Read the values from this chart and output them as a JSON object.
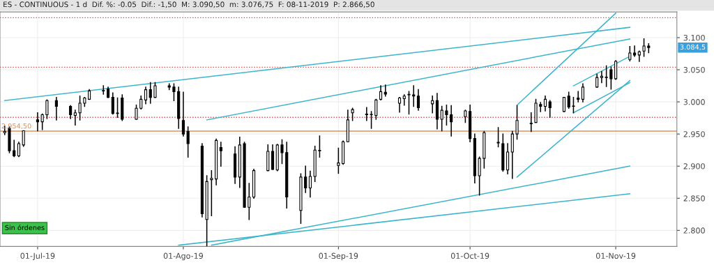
{
  "chart_data": {
    "type": "candlestick",
    "title": "ES - CONTINUOUS - 1 d  Dif. %: -0.05  Dif.: -1,50  M: 3.090,50  m: 3.076,75  F: 08-11-2019  P: 2.866,50",
    "x": [
      "2019-06-24",
      "2019-06-25",
      "2019-06-26",
      "2019-06-27",
      "2019-06-28",
      "2019-07-01",
      "2019-07-02",
      "2019-07-03",
      "2019-07-05",
      "2019-07-08",
      "2019-07-09",
      "2019-07-10",
      "2019-07-11",
      "2019-07-12",
      "2019-07-15",
      "2019-07-16",
      "2019-07-17",
      "2019-07-18",
      "2019-07-19",
      "2019-07-22",
      "2019-07-23",
      "2019-07-24",
      "2019-07-25",
      "2019-07-26",
      "2019-07-29",
      "2019-07-30",
      "2019-07-31",
      "2019-08-01",
      "2019-08-02",
      "2019-08-05",
      "2019-08-06",
      "2019-08-07",
      "2019-08-08",
      "2019-08-09",
      "2019-08-12",
      "2019-08-13",
      "2019-08-14",
      "2019-08-15",
      "2019-08-16",
      "2019-08-19",
      "2019-08-20",
      "2019-08-21",
      "2019-08-22",
      "2019-08-23",
      "2019-08-26",
      "2019-08-27",
      "2019-08-28",
      "2019-08-29",
      "2019-08-30",
      "2019-09-03",
      "2019-09-04",
      "2019-09-05",
      "2019-09-06",
      "2019-09-09",
      "2019-09-10",
      "2019-09-11",
      "2019-09-12",
      "2019-09-13",
      "2019-09-16",
      "2019-09-17",
      "2019-09-18",
      "2019-09-19",
      "2019-09-20",
      "2019-09-23",
      "2019-09-24",
      "2019-09-25",
      "2019-09-26",
      "2019-09-27",
      "2019-09-30",
      "2019-10-01",
      "2019-10-02",
      "2019-10-03",
      "2019-10-04",
      "2019-10-07",
      "2019-10-08",
      "2019-10-09",
      "2019-10-10",
      "2019-10-11",
      "2019-10-14",
      "2019-10-15",
      "2019-10-16",
      "2019-10-17",
      "2019-10-18",
      "2019-10-21",
      "2019-10-22",
      "2019-10-23",
      "2019-10-24",
      "2019-10-25",
      "2019-10-28",
      "2019-10-29",
      "2019-10-30",
      "2019-10-31",
      "2019-11-01",
      "2019-11-04",
      "2019-11-05",
      "2019-11-06",
      "2019-11-07",
      "2019-11-08"
    ],
    "ohlc": [
      [
        2952,
        2962,
        2949,
        2954
      ],
      [
        2959,
        2961,
        2921,
        2924
      ],
      [
        2924,
        2940,
        2915,
        2916
      ],
      [
        2916,
        2937,
        2915,
        2935
      ],
      [
        2933,
        2955,
        2931,
        2955
      ],
      [
        2972,
        2983,
        2955,
        2969
      ],
      [
        2969,
        2981,
        2957,
        2980
      ],
      [
        2980,
        3003,
        2974,
        3002
      ],
      [
        3002,
        3007,
        2972,
        2993
      ],
      [
        2993,
        2994,
        2974,
        2980
      ],
      [
        2979,
        2987,
        2964,
        2983
      ],
      [
        2983,
        3009,
        2972,
        2998
      ],
      [
        2998,
        3007,
        2993,
        3006
      ],
      [
        3004,
        3019,
        3004,
        3017
      ],
      [
        3017,
        3025,
        3012,
        3017
      ],
      [
        3020,
        3023,
        3007,
        3007
      ],
      [
        3007,
        3014,
        2981,
        2982
      ],
      [
        2982,
        3006,
        2976,
        2982
      ],
      [
        3006,
        3011,
        2971,
        2973
      ],
      [
        2973,
        2995,
        2973,
        2990
      ],
      [
        2990,
        3009,
        2989,
        3004
      ],
      [
        3003,
        3023,
        2997,
        3019
      ],
      [
        3019,
        3030,
        2998,
        3007
      ],
      [
        3007,
        3030,
        3007,
        3025
      ],
      [
        3025,
        3028,
        3019,
        3023
      ],
      [
        3023,
        3028,
        3002,
        3016
      ],
      [
        3016,
        3023,
        2959,
        2974
      ],
      [
        2971,
        3015,
        2947,
        2950
      ],
      [
        2954,
        2961,
        2914,
        2935
      ],
      [
        2931,
        2935,
        2821,
        2826
      ],
      [
        2817,
        2885,
        2776,
        2876
      ],
      [
        2879,
        2893,
        2823,
        2881
      ],
      [
        2880,
        2942,
        2871,
        2940
      ],
      [
        2929,
        2937,
        2900,
        2924
      ],
      [
        2919,
        2930,
        2873,
        2883
      ],
      [
        2883,
        2945,
        2867,
        2933
      ],
      [
        2935,
        2937,
        2836,
        2836
      ],
      [
        2836,
        2873,
        2817,
        2852
      ],
      [
        2852,
        2895,
        2850,
        2893
      ],
      [
        2893,
        2933,
        2893,
        2923
      ],
      [
        2923,
        2933,
        2895,
        2895
      ],
      [
        2894,
        2934,
        2893,
        2933
      ],
      [
        2933,
        2941,
        2904,
        2921
      ],
      [
        2921,
        2937,
        2835,
        2852
      ],
      [
        2831,
        2888,
        2811,
        2883
      ],
      [
        2883,
        2900,
        2859,
        2866
      ],
      [
        2866,
        2892,
        2852,
        2884
      ],
      [
        2884,
        2931,
        2876,
        2925
      ],
      [
        2924,
        2947,
        2914,
        2924
      ],
      [
        2901,
        2928,
        2889,
        2905
      ],
      [
        2904,
        2939,
        2903,
        2938
      ],
      [
        2938,
        2987,
        2938,
        2972
      ],
      [
        2983,
        2990,
        2971,
        2988
      ],
      [
        2981,
        2991,
        2971,
        2980
      ],
      [
        2980,
        2985,
        2959,
        2980
      ],
      [
        2979,
        3004,
        2973,
        3003
      ],
      [
        3004,
        3025,
        3003,
        3016
      ],
      [
        3015,
        3026,
        3009,
        3012
      ],
      [
        2998,
        3007,
        2984,
        3006
      ],
      [
        3005,
        3011,
        2995,
        3009
      ],
      [
        3011,
        3016,
        2981,
        3011
      ],
      [
        3011,
        3025,
        2993,
        3009
      ],
      [
        3009,
        3019,
        2987,
        2991
      ],
      [
        2997,
        3009,
        2983,
        3002
      ],
      [
        3002,
        3013,
        2958,
        2973
      ],
      [
        2973,
        2993,
        2955,
        2987
      ],
      [
        2986,
        2995,
        2964,
        2980
      ],
      [
        2980,
        2994,
        2947,
        2969
      ],
      [
        2977,
        2987,
        2968,
        2986
      ],
      [
        2985,
        2995,
        2938,
        2943
      ],
      [
        2943,
        2950,
        2874,
        2885
      ],
      [
        2885,
        2914,
        2855,
        2912
      ],
      [
        2912,
        2954,
        2897,
        2952
      ],
      [
        2936,
        2960,
        2930,
        2937
      ],
      [
        2935,
        2950,
        2892,
        2894
      ],
      [
        2894,
        2935,
        2888,
        2922
      ],
      [
        2922,
        2954,
        2881,
        2950
      ],
      [
        2950,
        2994,
        2942,
        2971
      ],
      [
        2966,
        2983,
        2954,
        2966
      ],
      [
        2968,
        3004,
        2968,
        2998
      ],
      [
        2996,
        2999,
        2985,
        2993
      ],
      [
        2993,
        3009,
        2986,
        3004
      ],
      [
        3000,
        3002,
        2976,
        2991
      ],
      [
        2985,
        3007,
        2985,
        3007
      ],
      [
        3009,
        3015,
        2990,
        2992
      ],
      [
        2993,
        3007,
        2983,
        2993
      ],
      [
        3006,
        3016,
        3000,
        3004
      ],
      [
        3004,
        3028,
        3000,
        3023
      ],
      [
        3023,
        3043,
        3023,
        3038
      ],
      [
        3038,
        3047,
        3030,
        3040
      ],
      [
        3038,
        3056,
        3024,
        3038
      ],
      [
        3050,
        3054,
        3020,
        3036
      ],
      [
        3036,
        3064,
        3035,
        3063
      ],
      [
        3066,
        3086,
        3064,
        3076
      ],
      [
        3076,
        3087,
        3071,
        3073
      ],
      [
        3073,
        3079,
        3063,
        3078
      ],
      [
        3079,
        3098,
        3071,
        3087
      ],
      [
        3087,
        3090.5,
        3076.75,
        3084.5
      ]
    ],
    "color": "#000000",
    "series": [
      {
        "type": "line",
        "color": "#3bb5cc",
        "x": [
          "2019-06-24",
          "2019-11-04"
        ],
        "values": [
          3002,
          3116
        ]
      },
      {
        "type": "line",
        "color": "#3bb5cc",
        "x": [
          "2019-08-06",
          "2019-11-04"
        ],
        "values": [
          2972,
          3098
        ]
      },
      {
        "type": "line",
        "color": "#3bb5cc",
        "x": [
          "2019-10-11",
          "2019-11-01"
        ],
        "values": [
          2995,
          3138
        ]
      },
      {
        "type": "line",
        "color": "#3bb5cc",
        "x": [
          "2019-10-11",
          "2019-11-04"
        ],
        "values": [
          2883,
          3033
        ]
      },
      {
        "type": "line",
        "color": "#3bb5cc",
        "x": [
          "2019-10-23",
          "2019-11-04"
        ],
        "values": [
          3025,
          3071
        ]
      },
      {
        "type": "line",
        "color": "#3bb5cc",
        "x": [
          "2019-10-23",
          "2019-11-04"
        ],
        "values": [
          2983,
          3030
        ]
      },
      {
        "type": "line",
        "color": "#3bb5cc",
        "x": [
          "2019-08-07",
          "2019-11-04"
        ],
        "values": [
          2777,
          2900
        ]
      },
      {
        "type": "line",
        "color": "#3bb5cc",
        "x": [
          "2019-07-31",
          "2019-11-04"
        ],
        "values": [
          2777,
          2857
        ]
      }
    ],
    "ref_lines": [
      {
        "axis": "y",
        "value": 2954.5,
        "label": "2.954,50",
        "color": "#e0905a",
        "line_style": "solid"
      },
      {
        "axis": "y",
        "value": 3131,
        "color": "#d04a4a",
        "line_style": "dotted"
      },
      {
        "axis": "y",
        "value": 3054,
        "color": "#d04a4a",
        "line_style": "dotted"
      },
      {
        "axis": "y",
        "value": 2976,
        "color": "#d04a4a",
        "line_style": "dotted"
      }
    ],
    "ylim": [
      2775,
      3140
    ],
    "yticks": [
      {
        "value": 2800,
        "label": "2.800"
      },
      {
        "value": 2850,
        "label": "2.850"
      },
      {
        "value": 2900,
        "label": "2.900"
      },
      {
        "value": 2950,
        "label": "2.950"
      },
      {
        "value": 3000,
        "label": "3.000"
      },
      {
        "value": 3050,
        "label": "3.050"
      },
      {
        "value": 3100,
        "label": "3.100"
      }
    ],
    "xticks": [
      {
        "value": "2019-07-01",
        "label": "01-Jul-19"
      },
      {
        "value": "2019-08-01",
        "label": "01-Ago-19"
      },
      {
        "value": "2019-09-03",
        "label": "01-Sep-19"
      },
      {
        "value": "2019-10-01",
        "label": "01-Oct-19"
      },
      {
        "value": "2019-11-01",
        "label": "01-Nov-19"
      }
    ],
    "annotations": [
      "3.084,5",
      "Sin órdenes"
    ],
    "xlim": [
      "2019-06-23",
      "2019-11-14"
    ],
    "grid": true,
    "legend": false
  }
}
